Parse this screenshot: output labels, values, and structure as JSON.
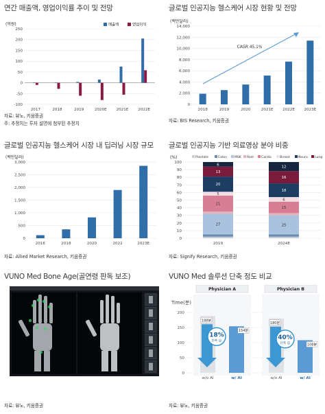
{
  "panels": {
    "p1": {
      "title": "연간 매출액, 영업이익률 추이 및 전망",
      "unit": "(억원)",
      "source": "자료: 뷰노, 키움증권",
      "note": "주: 추정치는 투자 설명에 첨부된 추정치"
    },
    "p2": {
      "title": "글로벌 인공지능 헬스케어 시장 현황 및 전망",
      "unit": "(백만달러)",
      "cagr": "CAGR 45.1%",
      "source": "자료: BIS Research, 키움증권"
    },
    "p3": {
      "title": "글로벌 인공지능 헬스케어 시장 내 딥러닝 시장 규모",
      "unit": "(백만달러)",
      "source": "자료: Allied Market Research, 키움증권"
    },
    "p4": {
      "title": "글로벌 인공지능 기반 의료영상 분야 비중",
      "unit": "(%)",
      "source": "자료: Signify Research, 키움증권"
    },
    "p5": {
      "title": "VUNO Med Bone Age(골연령 판독 보조)",
      "source": "자료: 뷰노, 키움증권"
    },
    "p6": {
      "title": "VUNO Med 솔루션 단축 정도 비교",
      "source": "자료: 뷰노, 키움증권"
    }
  },
  "chart_data": [
    {
      "id": "revenue",
      "type": "bar",
      "categories": [
        "2017",
        "2018",
        "2019",
        "2020E",
        "2021E",
        "2022E"
      ],
      "series": [
        {
          "name": "매출액",
          "values": [
            1,
            2,
            4,
            15,
            75,
            205
          ],
          "color": "#2f6ea8"
        },
        {
          "name": "영업이익",
          "values": [
            -10,
            -28,
            -60,
            -80,
            -55,
            58
          ],
          "color": "#8b1a43"
        }
      ],
      "ylim": [
        -100,
        250
      ],
      "yticks": [
        -100,
        -50,
        0,
        50,
        100,
        150,
        200,
        250
      ],
      "legend": "top-right"
    },
    {
      "id": "ai_market",
      "type": "bar",
      "categories": [
        "2018",
        "2019",
        "2020",
        "2021E",
        "2022E",
        "2023E"
      ],
      "values": [
        1900,
        2550,
        3550,
        5150,
        7650,
        11400
      ],
      "color": "#2f6ea8",
      "ylim": [
        0,
        14000
      ],
      "yticks": [
        0,
        2000,
        4000,
        6000,
        8000,
        10000,
        12000,
        14000
      ],
      "annotation": "CAGR 45.1%"
    },
    {
      "id": "deep_learning",
      "type": "bar",
      "categories": [
        "2016",
        "2018",
        "2020",
        "2022",
        "2023E"
      ],
      "values": [
        120,
        350,
        820,
        1900,
        2850
      ],
      "color": "#2f6ea8",
      "ylim": [
        0,
        3000
      ],
      "yticks": [
        0,
        500,
        1000,
        1500,
        2000,
        2500,
        3000
      ]
    },
    {
      "id": "imaging_share",
      "type": "bar",
      "stacked": true,
      "categories": [
        "2019",
        "2024E"
      ],
      "series": [
        {
          "name": "Prostate",
          "values": [
            2,
            2
          ],
          "color": "#c9cdd6"
        },
        {
          "name": "Colon",
          "values": [
            3,
            3
          ],
          "color": "#6b8bb3"
        },
        {
          "name": "MSK",
          "values": [
            27,
            25
          ],
          "color": "#a9c2de"
        },
        {
          "name": "Rest",
          "values": [
            3,
            3
          ],
          "color": "#e3b3be"
        },
        {
          "name": "Cardio",
          "values": [
            21,
            15
          ],
          "color": "#d77d94"
        },
        {
          "name": "Breast",
          "values": [
            5,
            6
          ],
          "color": "#f3dde3"
        },
        {
          "name": "Neuro",
          "values": [
            20,
            18
          ],
          "color": "#1d3d63"
        },
        {
          "name": "Lung",
          "values": [
            13,
            16
          ],
          "color": "#7a1b3c"
        },
        {
          "name": "Liver",
          "values": [
            6,
            12
          ],
          "color": "#16263e"
        }
      ],
      "ylim": [
        0,
        100
      ],
      "yticks": [
        0,
        10,
        20,
        30,
        40,
        50,
        60,
        70,
        80,
        90,
        100
      ],
      "legend": "top"
    },
    {
      "id": "reading_time",
      "type": "bar",
      "ylabel": "Time(분)",
      "groups": [
        {
          "name": "Physician A",
          "labels": [
            "w/o AI",
            "w/ AI"
          ],
          "values": [
            188,
            154
          ],
          "reduction": "18%",
          "reduction_text": "단축 ☺"
        },
        {
          "name": "Physician B",
          "labels": [
            "w/o AI",
            "w/ AI"
          ],
          "values": [
            180,
            108
          ],
          "reduction": "40%",
          "reduction_text": "단축 ☺"
        }
      ],
      "ylim": [
        0,
        200
      ],
      "yticks": [
        0,
        50,
        100,
        150,
        200
      ]
    }
  ]
}
